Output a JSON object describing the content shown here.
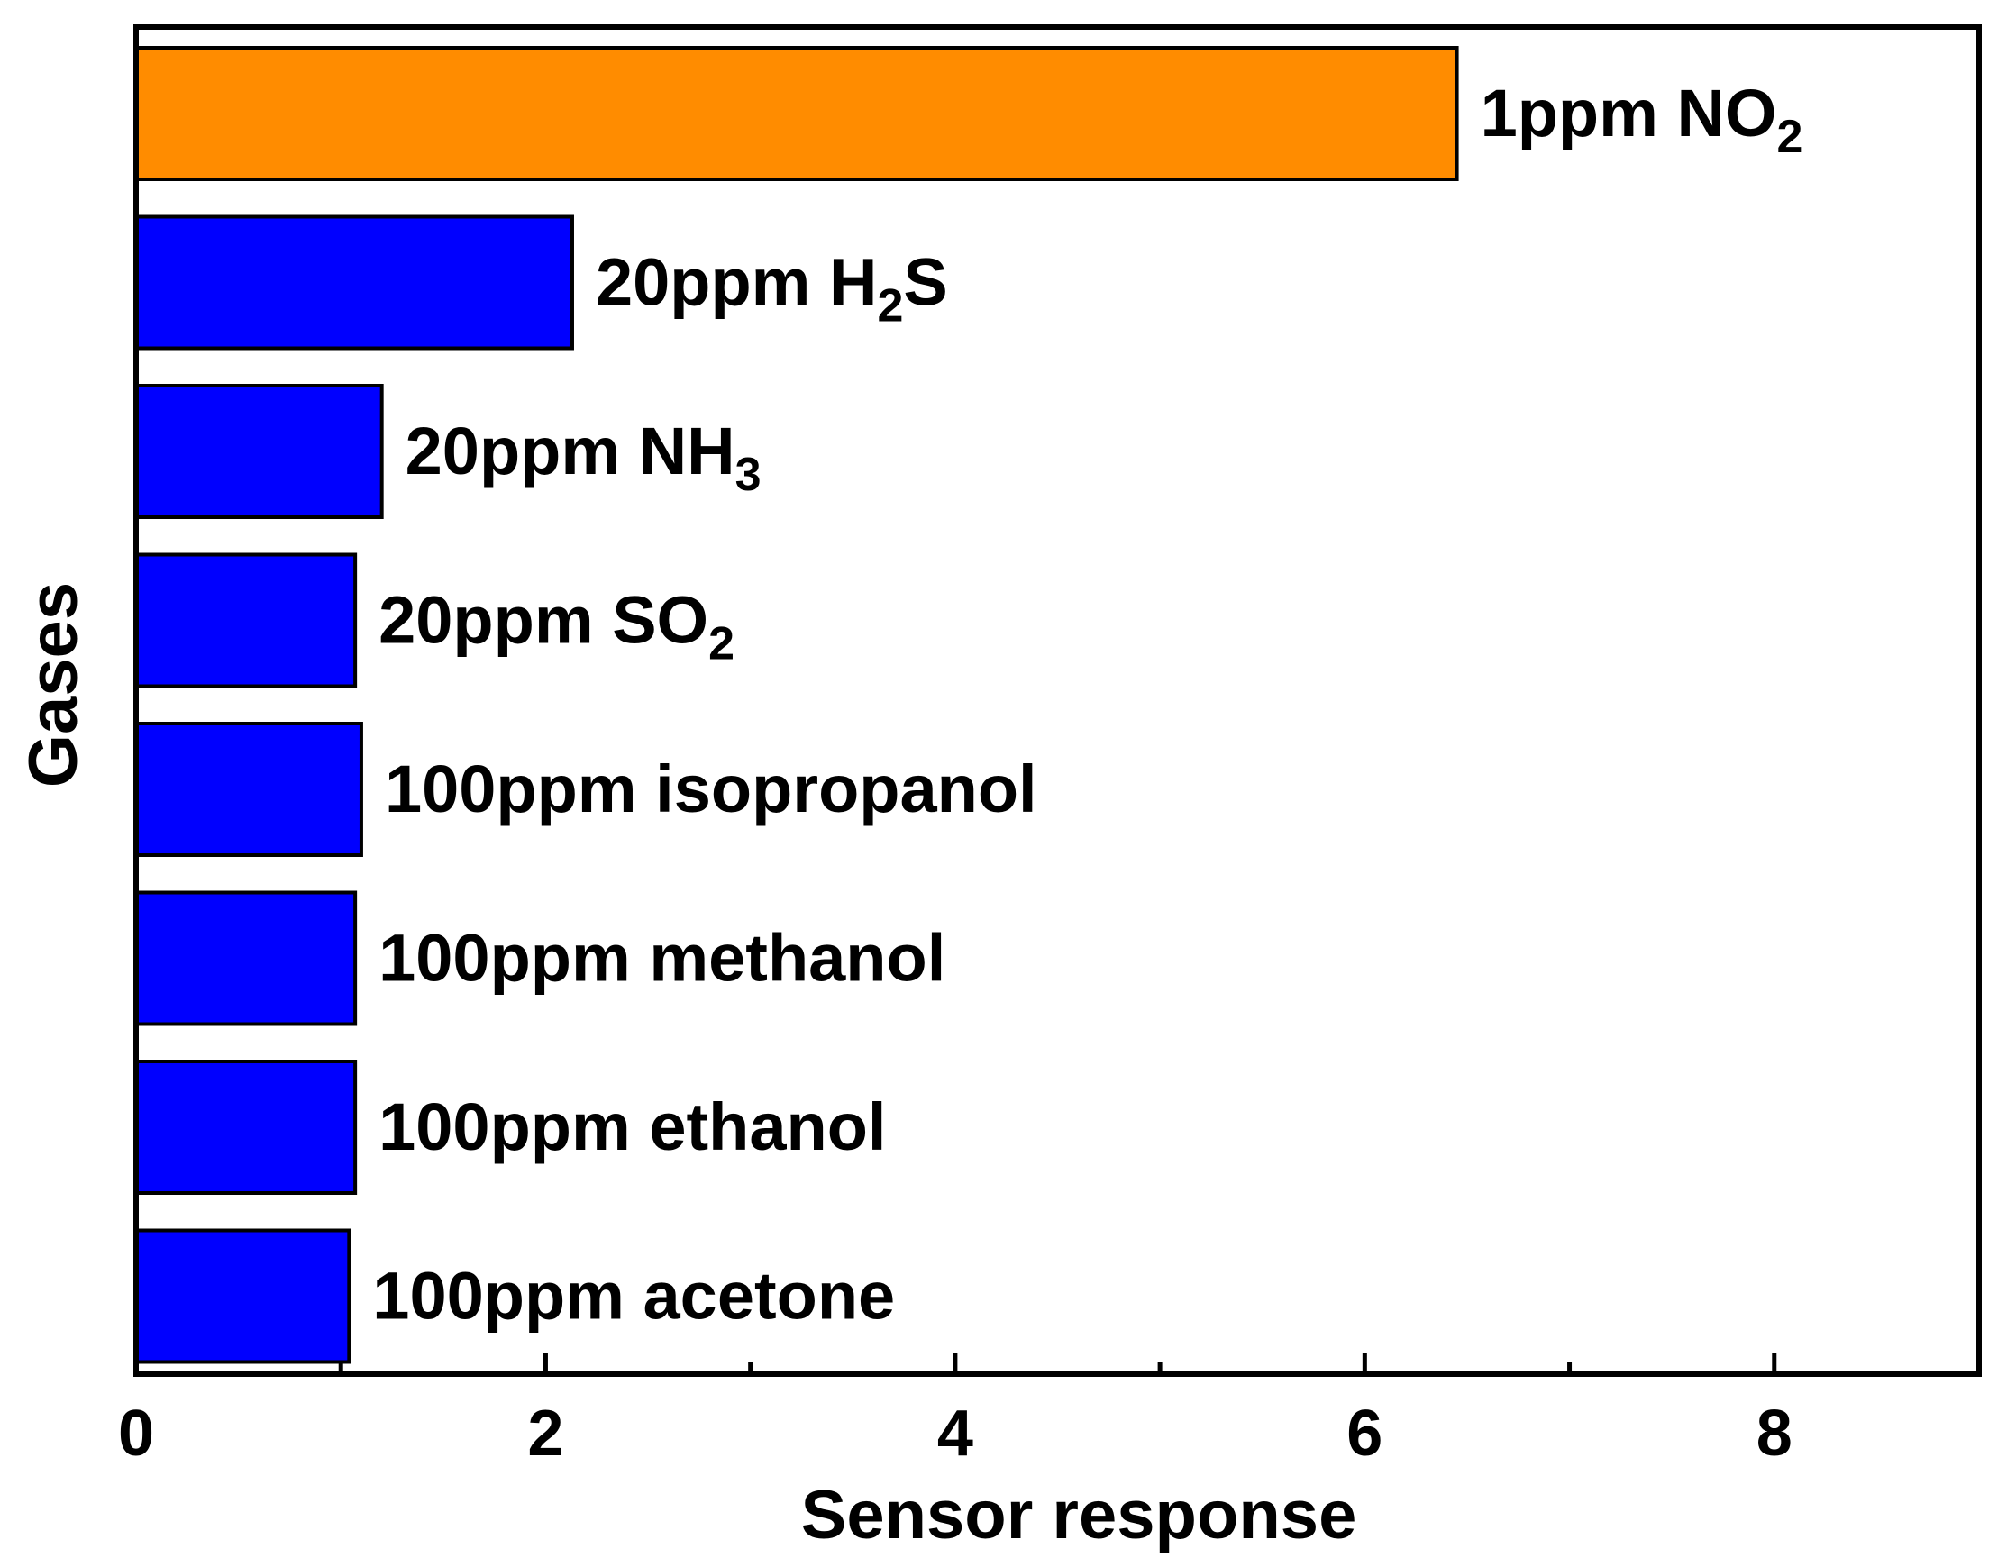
{
  "chart_data": {
    "type": "bar",
    "orientation": "horizontal",
    "xlabel": "Sensor response",
    "ylabel": "Gases",
    "xlim": [
      0,
      9
    ],
    "x_ticks": [
      0,
      2,
      4,
      6,
      8
    ],
    "x_minor_ticks": [
      1,
      3,
      5,
      7
    ],
    "grid": false,
    "categories": [
      {
        "pre": "1ppm NO",
        "sub": "2",
        "post": ""
      },
      {
        "pre": "20ppm H",
        "sub": "2",
        "post": "S"
      },
      {
        "pre": "20ppm NH",
        "sub": "3",
        "post": ""
      },
      {
        "pre": "20ppm SO",
        "sub": "2",
        "post": ""
      },
      {
        "pre": "100ppm isopropanol",
        "sub": "",
        "post": ""
      },
      {
        "pre": "100ppm methanol",
        "sub": "",
        "post": ""
      },
      {
        "pre": "100ppm ethanol",
        "sub": "",
        "post": ""
      },
      {
        "pre": "100ppm acetone",
        "sub": "",
        "post": ""
      }
    ],
    "values": [
      6.45,
      2.13,
      1.2,
      1.07,
      1.1,
      1.07,
      1.07,
      1.04
    ],
    "colors": [
      "#ff8c00",
      "#0000ff",
      "#0000ff",
      "#0000ff",
      "#0000ff",
      "#0000ff",
      "#0000ff",
      "#0000ff"
    ]
  }
}
